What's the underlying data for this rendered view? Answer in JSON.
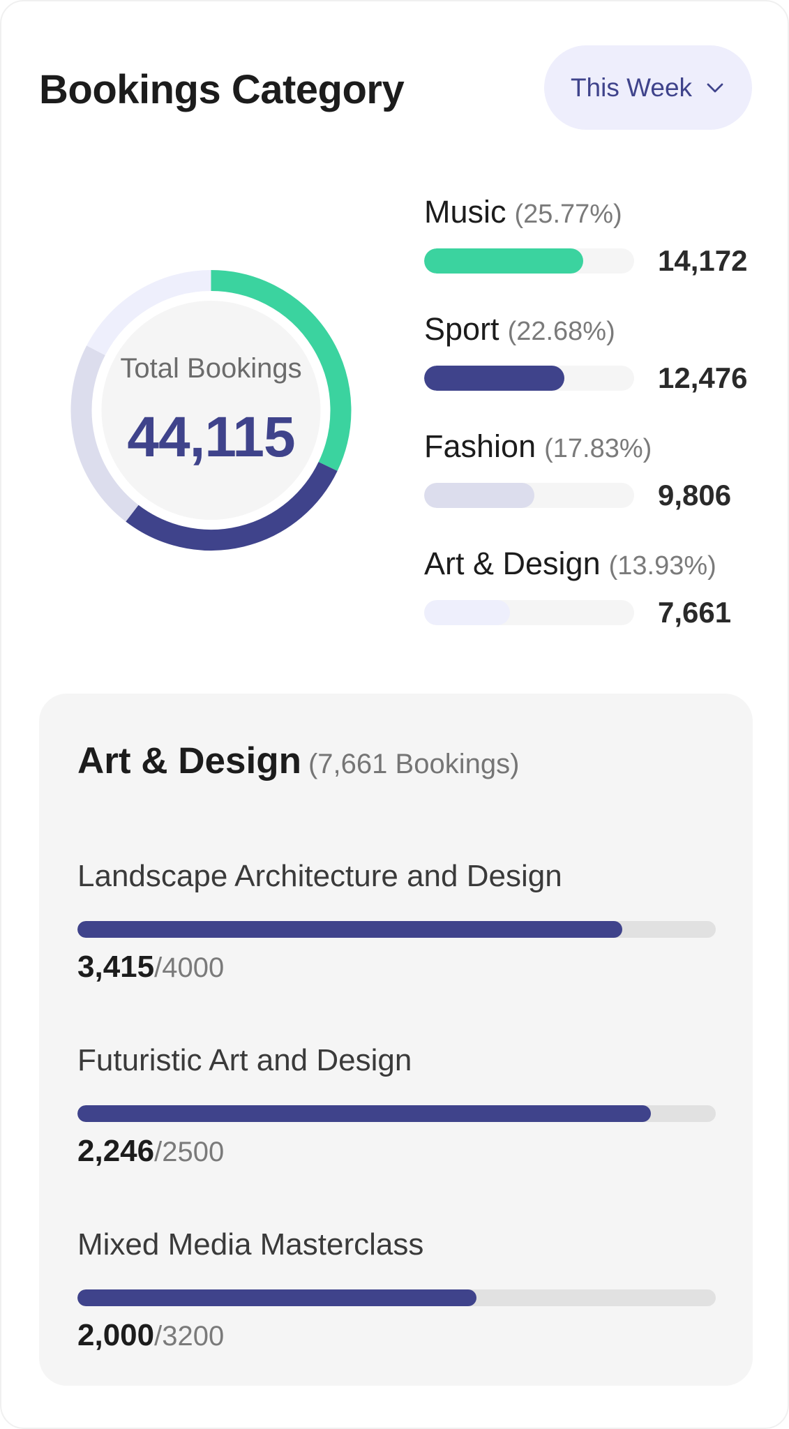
{
  "header": {
    "title": "Bookings Category",
    "period_label": "This Week",
    "period_icon": "chevron-down-icon"
  },
  "summary": {
    "label": "Total Bookings",
    "value": "44,115"
  },
  "categories": [
    {
      "name": "Music",
      "percent_label": "(25.77%)",
      "value": "14,172",
      "share": 0.2577,
      "color": "#3bd39f"
    },
    {
      "name": "Sport",
      "percent_label": "(22.68%)",
      "value": "12,476",
      "share": 0.2268,
      "color": "#3f438b"
    },
    {
      "name": "Fashion",
      "percent_label": "(17.83%)",
      "value": "9,806",
      "share": 0.1783,
      "color": "#dcdded"
    },
    {
      "name": "Art & Design",
      "percent_label": "(13.93%)",
      "value": "7,661",
      "share": 0.1393,
      "color": "#eeeffc"
    }
  ],
  "detail": {
    "title": "Art & Design",
    "subtitle": "(7,661 Bookings)",
    "items": [
      {
        "name": "Landscape Architecture and Design",
        "value": "3,415",
        "total": "/4000",
        "fraction": 0.854
      },
      {
        "name": "Futuristic Art and Design",
        "value": "2,246",
        "total": "/2500",
        "fraction": 0.898
      },
      {
        "name": "Mixed Media Masterclass",
        "value": "2,000",
        "total": "/3200",
        "fraction": 0.625
      }
    ]
  },
  "colors": {
    "accent": "#3f438b",
    "green": "#3bd39f",
    "chip_bg": "#eeeefc",
    "panel_bg": "#f5f5f5"
  }
}
